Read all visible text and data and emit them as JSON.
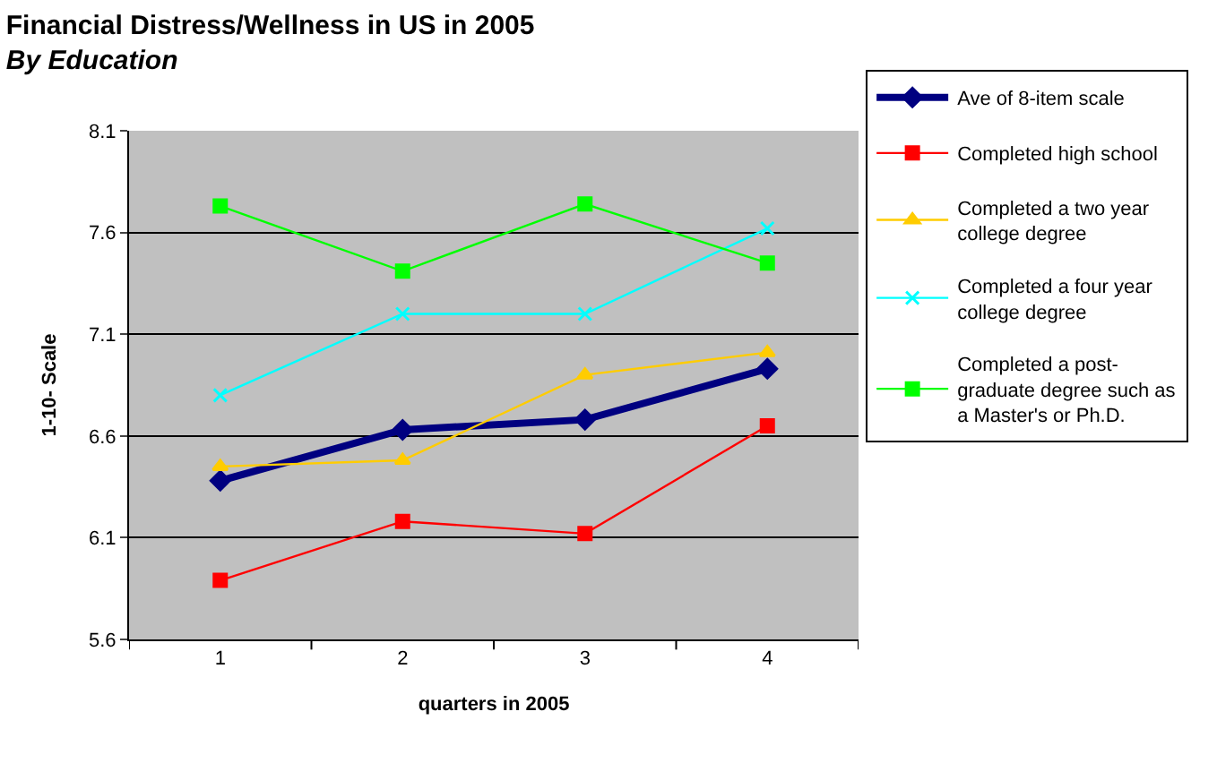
{
  "chart_data": {
    "type": "line",
    "title": "Financial Distress/Wellness in US in 2005",
    "subtitle": "By Education",
    "xlabel": "quarters in 2005",
    "ylabel": "1-10- Scale",
    "categories": [
      "1",
      "2",
      "3",
      "4"
    ],
    "series": [
      {
        "name": "Ave of 8-item scale",
        "color": "#000080",
        "marker": "diamond",
        "values": [
          6.38,
          6.63,
          6.68,
          6.93
        ]
      },
      {
        "name": "Completed high school",
        "color": "#ff0000",
        "marker": "square",
        "values": [
          5.89,
          6.18,
          6.12,
          6.65
        ]
      },
      {
        "name": "Completed a two year college degree",
        "color": "#ffcc00",
        "marker": "triangle",
        "values": [
          6.45,
          6.48,
          6.9,
          7.01
        ]
      },
      {
        "name": "Completed a four year college degree",
        "color": "#00ffff",
        "marker": "cross",
        "values": [
          6.8,
          7.2,
          7.2,
          7.62
        ]
      },
      {
        "name": "Completed a post-graduate degree such as a Master's or Ph.D.",
        "color": "#00ff00",
        "marker": "square",
        "values": [
          7.73,
          7.41,
          7.74,
          7.45
        ]
      }
    ],
    "ylim": [
      5.6,
      8.1
    ],
    "yticks": [
      5.6,
      6.1,
      6.6,
      7.1,
      7.6,
      8.1
    ],
    "grid": "y",
    "legend": "right",
    "line_style": "solid"
  }
}
